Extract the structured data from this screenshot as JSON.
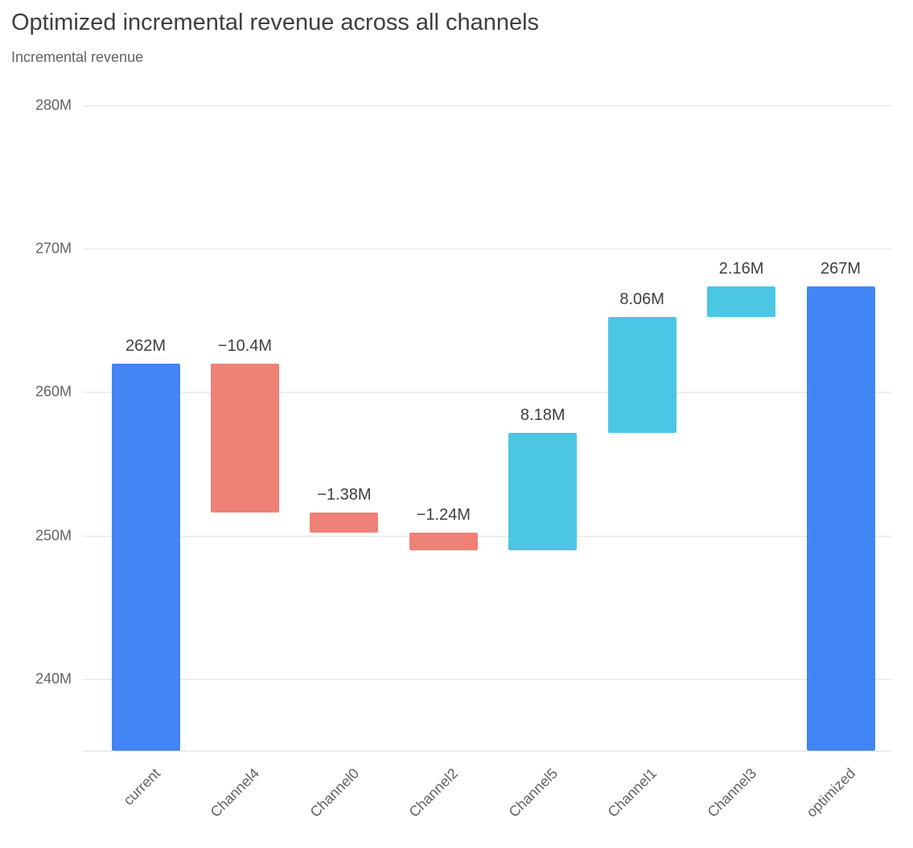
{
  "header": {
    "title": "Optimized incremental revenue across all channels",
    "subtitle": "Incremental revenue"
  },
  "chart_data": {
    "type": "bar",
    "subtype": "waterfall",
    "title": "Optimized incremental revenue across all channels",
    "ylabel": "Incremental revenue",
    "unit": "M",
    "ylim": [
      235,
      280
    ],
    "baseline": 235,
    "yticks": [
      280,
      270,
      260,
      250,
      240
    ],
    "ytick_labels": [
      "280M",
      "270M",
      "260M",
      "250M",
      "240M"
    ],
    "grid": "horizontal",
    "legend_position": "none",
    "colors": {
      "total": "#4285F4",
      "increase": "#4BC6E4",
      "decrease": "#EE8277"
    },
    "categories": [
      "current",
      "Channel4",
      "Channel0",
      "Channel2",
      "Channel5",
      "Channel1",
      "Channel3",
      "optimized"
    ],
    "bars": [
      {
        "category": "current",
        "start": 235,
        "end": 262,
        "delta": null,
        "kind": "total",
        "label": "262M"
      },
      {
        "category": "Channel4",
        "start": 262,
        "end": 251.6,
        "delta": -10.4,
        "kind": "decrease",
        "label": "−10.4M"
      },
      {
        "category": "Channel0",
        "start": 251.6,
        "end": 250.22,
        "delta": -1.38,
        "kind": "decrease",
        "label": "−1.38M"
      },
      {
        "category": "Channel2",
        "start": 250.22,
        "end": 248.98,
        "delta": -1.24,
        "kind": "decrease",
        "label": "−1.24M"
      },
      {
        "category": "Channel5",
        "start": 248.98,
        "end": 257.16,
        "delta": 8.18,
        "kind": "increase",
        "label": "8.18M"
      },
      {
        "category": "Channel1",
        "start": 257.16,
        "end": 265.22,
        "delta": 8.06,
        "kind": "increase",
        "label": "8.06M"
      },
      {
        "category": "Channel3",
        "start": 265.22,
        "end": 267.38,
        "delta": 2.16,
        "kind": "increase",
        "label": "2.16M"
      },
      {
        "category": "optimized",
        "start": 235,
        "end": 267.38,
        "delta": null,
        "kind": "total",
        "label": "267M"
      }
    ]
  }
}
